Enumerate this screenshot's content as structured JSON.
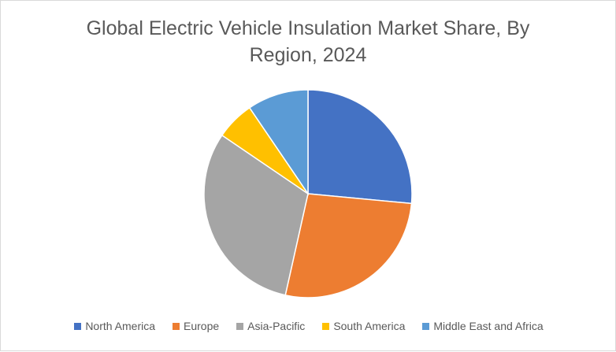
{
  "chart_data": {
    "type": "pie",
    "title": "Global Electric Vehicle Insulation Market Share, By Region, 2024",
    "legend_position": "bottom",
    "slices": [
      {
        "name": "North America",
        "value": 26.5,
        "color": "#4472C4"
      },
      {
        "name": "Europe",
        "value": 27.0,
        "color": "#ED7D31"
      },
      {
        "name": "Asia-Pacific",
        "value": 31.0,
        "color": "#A5A5A5"
      },
      {
        "name": "South America",
        "value": 6.0,
        "color": "#FFC000"
      },
      {
        "name": "Middle East and Africa",
        "value": 9.5,
        "color": "#5B9BD5"
      }
    ]
  }
}
